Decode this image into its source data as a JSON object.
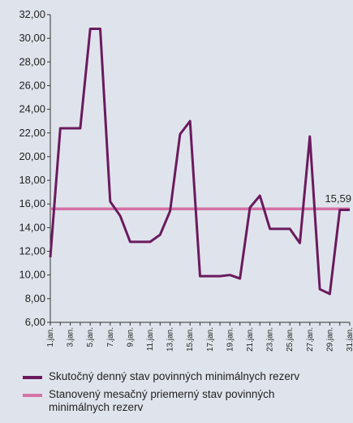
{
  "chart_data": {
    "type": "line",
    "categories": [
      "1.jan.",
      null,
      "3.jan.",
      null,
      "5.jan.",
      null,
      "7.jan.",
      null,
      "9.jan.",
      null,
      "11.jan.",
      null,
      "13.jan.",
      null,
      "15.jan.",
      null,
      "17.jan.",
      null,
      "19.jan.",
      null,
      "21.jan.",
      null,
      "23.jan.",
      null,
      "25.jan.",
      null,
      "27.jan.",
      null,
      "29.jan.",
      null,
      "31.jan."
    ],
    "series": [
      {
        "name": "Skutočný denný stav povinných minimálnych rezerv",
        "color": "#6b1a5e",
        "values": [
          11.5,
          22.4,
          22.4,
          22.4,
          30.8,
          30.8,
          16.2,
          15.0,
          12.8,
          12.8,
          12.8,
          13.4,
          15.4,
          21.9,
          23.0,
          9.9,
          9.9,
          9.9,
          10.0,
          9.7,
          15.7,
          16.7,
          13.9,
          13.9,
          13.9,
          12.7,
          21.7,
          8.8,
          8.4,
          15.5,
          15.5
        ]
      },
      {
        "name": "Stanovený mesačný priemerný stav povinných minimálnych rezerv",
        "color": "#d472a6",
        "values": [
          15.59,
          15.59,
          15.59,
          15.59,
          15.59,
          15.59,
          15.59,
          15.59,
          15.59,
          15.59,
          15.59,
          15.59,
          15.59,
          15.59,
          15.59,
          15.59,
          15.59,
          15.59,
          15.59,
          15.59,
          15.59,
          15.59,
          15.59,
          15.59,
          15.59,
          15.59,
          15.59,
          15.59,
          15.59,
          15.59,
          15.59
        ],
        "value_labels": [
          null,
          null,
          null,
          null,
          null,
          null,
          null,
          null,
          null,
          null,
          null,
          null,
          null,
          null,
          null,
          null,
          null,
          null,
          null,
          null,
          null,
          null,
          null,
          null,
          null,
          null,
          null,
          null,
          null,
          null,
          "15,59"
        ]
      }
    ],
    "ylim": [
      6,
      32
    ],
    "yticks": [
      {
        "value": 6,
        "label": "6,00"
      },
      {
        "value": 8,
        "label": "8,00"
      },
      {
        "value": 10,
        "label": "10,00"
      },
      {
        "value": 12,
        "label": "12,00"
      },
      {
        "value": 14,
        "label": "14,00"
      },
      {
        "value": 16,
        "label": "16,00"
      },
      {
        "value": 18,
        "label": "18,00"
      },
      {
        "value": 20,
        "label": "20,00"
      },
      {
        "value": 22,
        "label": "22,00"
      },
      {
        "value": 24,
        "label": "24,00"
      },
      {
        "value": 26,
        "label": "26,00"
      },
      {
        "value": 28,
        "label": "28,00"
      },
      {
        "value": 30,
        "label": "30,00"
      },
      {
        "value": 32,
        "label": "32,00"
      }
    ],
    "grid": false
  }
}
